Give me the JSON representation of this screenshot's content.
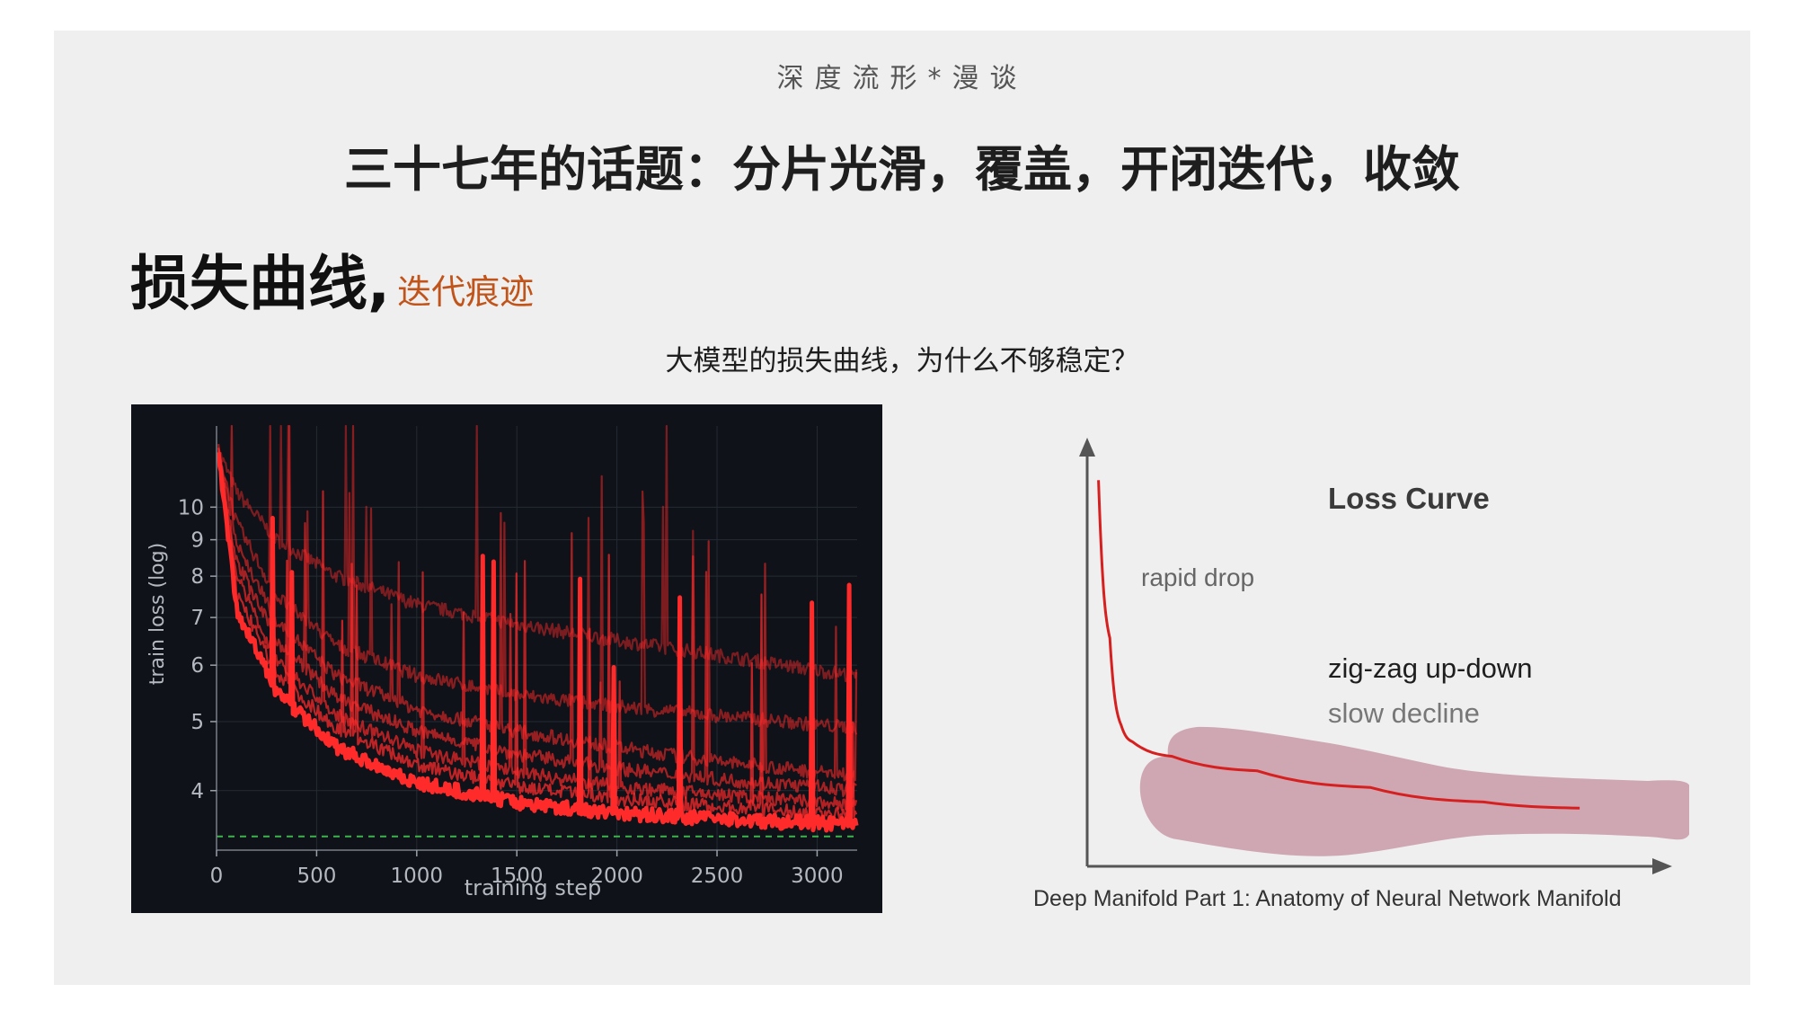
{
  "slide": {
    "header": "深度流形*漫谈",
    "title": "三十七年的话题：分片光滑，覆盖，开闭迭代，收敛",
    "section_title": "损失曲线,",
    "section_subtitle": "迭代痕迹",
    "question": "大模型的损失曲线，为什么不够稳定？",
    "caption": "Deep Manifold Part 1: Anatomy of Neural Network Manifold"
  },
  "colors": {
    "left_background": "#0f1218",
    "curve_red": "#ff2a2a",
    "dashed_line": "#3cb44b",
    "band": "#cfa0ae",
    "accent_orange": "#c0541a"
  },
  "chart_data": [
    {
      "type": "line",
      "xlabel": "training step",
      "ylabel": "train loss  (log)",
      "y_scale": "log",
      "xlim": [
        0,
        3200
      ],
      "ylim": [
        3.3,
        13
      ],
      "xticks": [
        0,
        500,
        1000,
        1500,
        2000,
        2500,
        3000
      ],
      "yticks": [
        4,
        5,
        6,
        7,
        8,
        9,
        10
      ],
      "grid": true,
      "dashed_reference_y": 3.45,
      "series": [
        {
          "values": [
            [
              10,
              12
            ],
            [
              100,
              7.2
            ],
            [
              300,
              5.5
            ],
            [
              600,
              4.6
            ],
            [
              1000,
              4.1
            ],
            [
              1500,
              3.85
            ],
            [
              2000,
              3.72
            ],
            [
              2500,
              3.65
            ],
            [
              3000,
              3.6
            ],
            [
              3200,
              3.58
            ]
          ]
        },
        {
          "values": [
            [
              10,
              12
            ],
            [
              100,
              7.6
            ],
            [
              300,
              5.8
            ],
            [
              600,
              4.9
            ],
            [
              1000,
              4.35
            ],
            [
              1500,
              4.05
            ],
            [
              2000,
              3.9
            ],
            [
              2500,
              3.8
            ],
            [
              3000,
              3.72
            ],
            [
              3200,
              3.7
            ]
          ]
        },
        {
          "values": [
            [
              10,
              12
            ],
            [
              100,
              8.0
            ],
            [
              300,
              6.1
            ],
            [
              600,
              5.1
            ],
            [
              1000,
              4.55
            ],
            [
              1500,
              4.25
            ],
            [
              2000,
              4.05
            ],
            [
              2500,
              3.95
            ],
            [
              3000,
              3.85
            ],
            [
              3200,
              3.82
            ]
          ]
        },
        {
          "values": [
            [
              10,
              12
            ],
            [
              100,
              8.4
            ],
            [
              300,
              6.5
            ],
            [
              600,
              5.4
            ],
            [
              1000,
              4.85
            ],
            [
              1500,
              4.5
            ],
            [
              2000,
              4.3
            ],
            [
              2500,
              4.15
            ],
            [
              3000,
              4.05
            ],
            [
              3200,
              4.0
            ]
          ]
        },
        {
          "values": [
            [
              10,
              12
            ],
            [
              100,
              8.9
            ],
            [
              300,
              6.9
            ],
            [
              600,
              5.8
            ],
            [
              1000,
              5.2
            ],
            [
              1500,
              4.85
            ],
            [
              2000,
              4.6
            ],
            [
              2500,
              4.4
            ],
            [
              3000,
              4.25
            ],
            [
              3200,
              4.2
            ]
          ]
        },
        {
          "values": [
            [
              10,
              12
            ],
            [
              100,
              9.5
            ],
            [
              300,
              7.5
            ],
            [
              600,
              6.4
            ],
            [
              1000,
              5.8
            ],
            [
              1500,
              5.45
            ],
            [
              2000,
              5.25
            ],
            [
              2500,
              5.1
            ],
            [
              3000,
              4.95
            ],
            [
              3200,
              4.9
            ]
          ]
        },
        {
          "values": [
            [
              10,
              12
            ],
            [
              100,
              10.5
            ],
            [
              300,
              9.0
            ],
            [
              600,
              8.0
            ],
            [
              1000,
              7.3
            ],
            [
              1500,
              6.85
            ],
            [
              2000,
              6.5
            ],
            [
              2500,
              6.2
            ],
            [
              3000,
              5.9
            ],
            [
              3200,
              5.8
            ]
          ]
        }
      ]
    },
    {
      "type": "line",
      "title": "Loss Curve",
      "annotations": [
        "rapid drop",
        "zig-zag up-down",
        "slow decline"
      ],
      "series": [
        {
          "values": [
            [
              0.02,
              0.93
            ],
            [
              0.04,
              0.55
            ],
            [
              0.06,
              0.34
            ],
            [
              0.08,
              0.3
            ],
            [
              0.15,
              0.265
            ],
            [
              0.3,
              0.23
            ],
            [
              0.5,
              0.19
            ],
            [
              0.7,
              0.155
            ],
            [
              0.87,
              0.14
            ]
          ]
        }
      ]
    }
  ]
}
